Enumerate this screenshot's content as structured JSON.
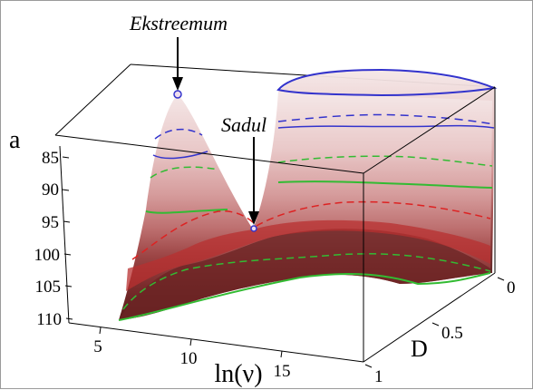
{
  "chart_data": {
    "type": "surface",
    "annotations": [
      {
        "text": "Ekstreemum"
      },
      {
        "text": "Sadul"
      }
    ],
    "axes": {
      "a": {
        "label": "a",
        "ticks": [
          "85",
          "90",
          "95",
          "100",
          "105",
          "110"
        ],
        "range": [
          85,
          110
        ],
        "reversed": true
      },
      "x": {
        "label": "ln(ν)",
        "ticks": [
          "5",
          "10",
          "15"
        ],
        "range": [
          3,
          19
        ]
      },
      "y": {
        "label": "D",
        "ticks": [
          "0",
          "0.5",
          "1"
        ],
        "range": [
          0,
          1
        ]
      }
    },
    "contours": [
      {
        "style": "solid",
        "color": "#3333cc"
      },
      {
        "style": "dashed",
        "color": "#3333cc"
      },
      {
        "style": "solid",
        "color": "#33bb33"
      },
      {
        "style": "dashed",
        "color": "#33bb33"
      },
      {
        "style": "dashed",
        "color": "#dd2222"
      }
    ],
    "surface_colors": [
      "#f2e3e3",
      "#e8c7c7",
      "#d9a0a0",
      "#c47a7a",
      "#a85151",
      "#7f2f2f",
      "#5e1e1e"
    ],
    "critical_points": [
      {
        "name": "Ekstreemum",
        "ln_nu": 8.5,
        "a": 84
      },
      {
        "name": "Sadul",
        "ln_nu": 13.5,
        "a": 96
      }
    ]
  }
}
